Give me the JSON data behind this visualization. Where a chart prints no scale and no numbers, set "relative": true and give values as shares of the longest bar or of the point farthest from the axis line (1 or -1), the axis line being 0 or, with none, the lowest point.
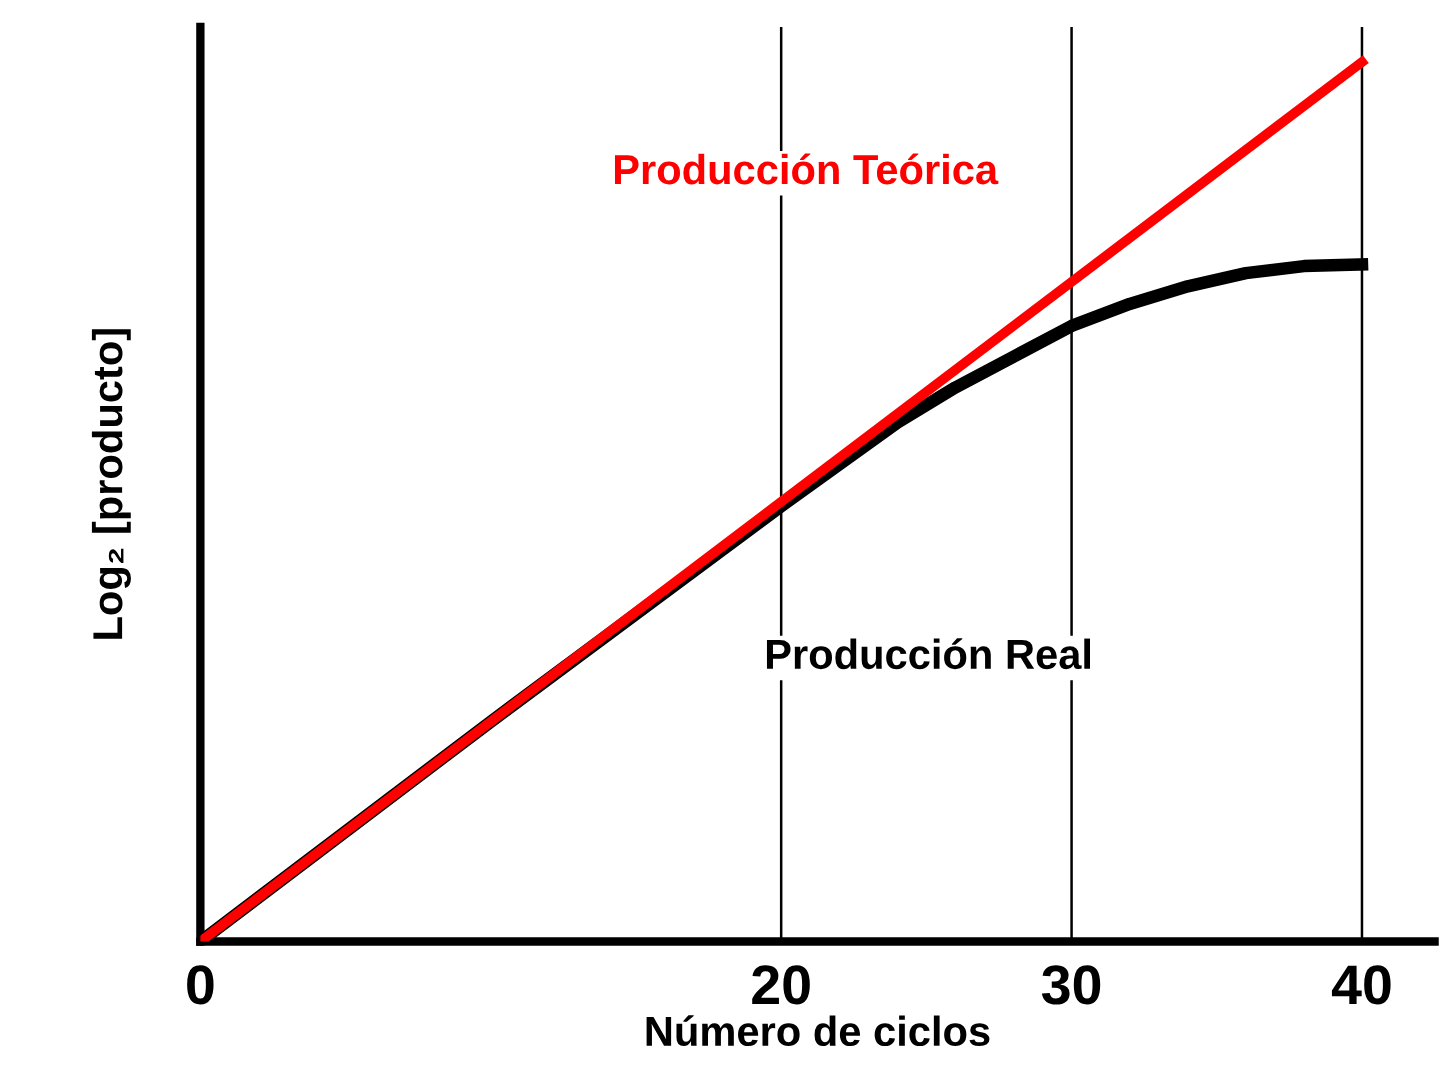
{
  "chart_data": {
    "type": "line",
    "relative": true,
    "xlabel": "Número de ciclos",
    "ylabel": "Log₂ [producto]",
    "xlim": [
      0,
      42.5
    ],
    "xticks": [
      0,
      20,
      30,
      40
    ],
    "grid": false,
    "legend": false,
    "marker": "none",
    "line_style": "solid",
    "series": [
      {
        "name": "Producción Teórica",
        "color": "#ff0000",
        "x": [
          0,
          40
        ],
        "values": [
          0,
          1
        ]
      },
      {
        "name": "Producción Real",
        "color": "#000000",
        "x": [
          0,
          10,
          20,
          24,
          26,
          28,
          30,
          32,
          34,
          36,
          38,
          40
        ],
        "values": [
          0,
          0.25,
          0.495,
          0.59,
          0.63,
          0.665,
          0.7,
          0.725,
          0.745,
          0.76,
          0.768,
          0.77
        ]
      }
    ],
    "ref_lines": [
      {
        "axis": "x",
        "value": 20,
        "color": "#000000"
      },
      {
        "axis": "x",
        "value": 30,
        "color": "#000000"
      },
      {
        "axis": "x",
        "value": 40,
        "color": "#000000"
      }
    ]
  }
}
